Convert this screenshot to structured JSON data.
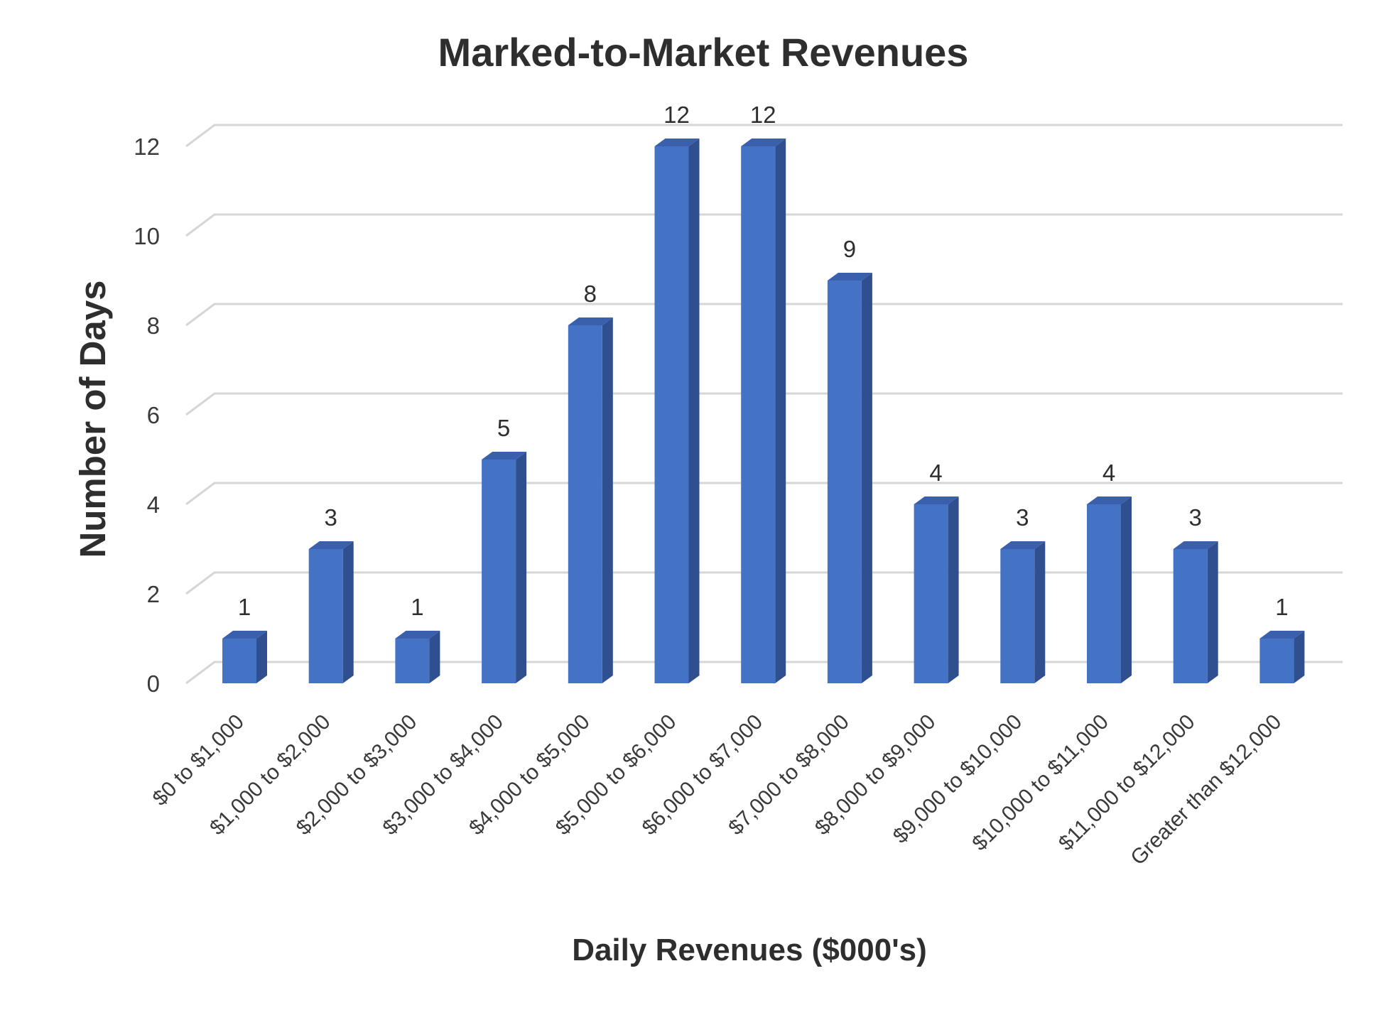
{
  "chart_data": {
    "type": "bar",
    "title": "Marked-to-Market Revenues",
    "xlabel": "Daily Revenues ($000's)",
    "ylabel": "Number of Days",
    "categories": [
      "$0 to $1,000",
      "$1,000 to $2,000",
      "$2,000 to $3,000",
      "$3,000 to $4,000",
      "$4,000 to $5,000",
      "$5,000 to $6,000",
      "$6,000 to $7,000",
      "$7,000 to $8,000",
      "$8,000 to $9,000",
      "$9,000 to $10,000",
      "$10,000 to $11,000",
      "$11,000 to $12,000",
      "Greater than $12,000"
    ],
    "values": [
      1,
      3,
      1,
      5,
      8,
      12,
      12,
      9,
      4,
      3,
      4,
      3,
      1
    ],
    "ylim": [
      0,
      12
    ],
    "yticks": [
      "0",
      "2",
      "4",
      "6",
      "8",
      "10",
      "12"
    ],
    "grid": true,
    "data_labels": true,
    "legend": "none",
    "style": "3d-column",
    "colors": {
      "bar_front": "#4472c4",
      "bar_side": "#2f4f8f",
      "bar_top": "#3a60ad",
      "gridline": "#d6d6d6"
    }
  }
}
